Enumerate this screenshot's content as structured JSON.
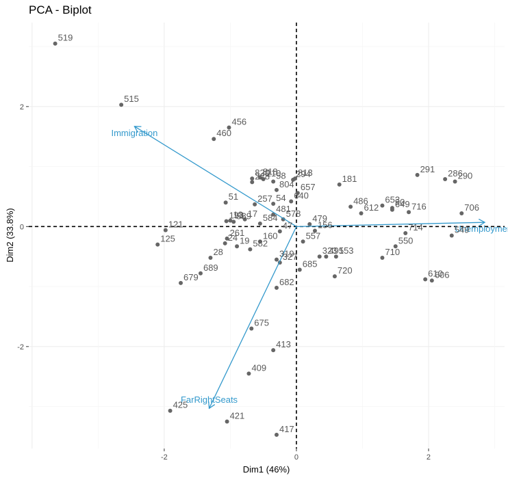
{
  "chart_data": {
    "type": "scatter",
    "title": "PCA - Biplot",
    "xlabel": "Dim1 (46%)",
    "ylabel": "Dim2 (33.8%)",
    "xlim": [
      -4.05,
      3.15
    ],
    "ylim": [
      -3.7,
      3.4
    ],
    "x_ticks": [
      -2,
      0,
      2
    ],
    "y_ticks": [
      -2,
      0,
      2
    ],
    "tick_labels_x": [
      "-2",
      "0",
      "2"
    ],
    "tick_labels_y": [
      "-2",
      "0",
      "2"
    ],
    "grid": true,
    "reference_lines": "dashed lines at x=0 and y=0",
    "point_color": "#666666",
    "arrow_color": "#3399cc",
    "points": [
      {
        "label": "519",
        "x": -3.65,
        "y": 3.05
      },
      {
        "label": "515",
        "x": -2.65,
        "y": 2.03
      },
      {
        "label": "456",
        "x": -1.02,
        "y": 1.65
      },
      {
        "label": "460",
        "x": -1.25,
        "y": 1.46
      },
      {
        "label": "818",
        "x": -0.55,
        "y": 0.82
      },
      {
        "label": "820",
        "x": -0.67,
        "y": 0.8
      },
      {
        "label": "210",
        "x": -0.5,
        "y": 0.79
      },
      {
        "label": "228",
        "x": -0.67,
        "y": 0.74
      },
      {
        "label": "58",
        "x": -0.35,
        "y": 0.75
      },
      {
        "label": "813",
        "x": -0.02,
        "y": 0.8
      },
      {
        "label": "294",
        "x": -0.05,
        "y": 0.78
      },
      {
        "label": "804",
        "x": -0.3,
        "y": 0.61
      },
      {
        "label": "657",
        "x": 0.02,
        "y": 0.56
      },
      {
        "label": "181",
        "x": 0.65,
        "y": 0.7
      },
      {
        "label": "291",
        "x": 1.83,
        "y": 0.86
      },
      {
        "label": "286",
        "x": 2.25,
        "y": 0.79
      },
      {
        "label": "290",
        "x": 2.4,
        "y": 0.75
      },
      {
        "label": "51",
        "x": -1.07,
        "y": 0.4
      },
      {
        "label": "257",
        "x": -0.63,
        "y": 0.37
      },
      {
        "label": "54",
        "x": -0.35,
        "y": 0.38
      },
      {
        "label": "640",
        "x": -0.08,
        "y": 0.42
      },
      {
        "label": "653",
        "x": 1.3,
        "y": 0.35
      },
      {
        "label": "90",
        "x": 1.45,
        "y": 0.31
      },
      {
        "label": "716",
        "x": 1.7,
        "y": 0.24
      },
      {
        "label": "706",
        "x": 2.5,
        "y": 0.22
      },
      {
        "label": "13",
        "x": -1.0,
        "y": 0.1
      },
      {
        "label": "17",
        "x": -0.78,
        "y": 0.12
      },
      {
        "label": "481",
        "x": -0.35,
        "y": 0.2
      },
      {
        "label": "578",
        "x": -0.2,
        "y": 0.12
      },
      {
        "label": "486",
        "x": 0.82,
        "y": 0.33
      },
      {
        "label": "649",
        "x": 1.45,
        "y": 0.28
      },
      {
        "label": "121",
        "x": -1.98,
        "y": -0.06
      },
      {
        "label": "193",
        "x": -1.06,
        "y": 0.09
      },
      {
        "label": "589",
        "x": -0.95,
        "y": 0.08
      },
      {
        "label": "584",
        "x": -0.55,
        "y": 0.05
      },
      {
        "label": "479",
        "x": 0.2,
        "y": 0.04
      },
      {
        "label": "612",
        "x": 0.98,
        "y": 0.22
      },
      {
        "label": "549",
        "x": 2.35,
        "y": -0.15
      },
      {
        "label": "47",
        "x": -0.25,
        "y": -0.08
      },
      {
        "label": "557",
        "x": 0.1,
        "y": -0.25
      },
      {
        "label": "156",
        "x": 0.28,
        "y": -0.07
      },
      {
        "label": "714",
        "x": 1.65,
        "y": -0.11
      },
      {
        "label": "125",
        "x": -2.1,
        "y": -0.3
      },
      {
        "label": "261",
        "x": -1.05,
        "y": -0.2
      },
      {
        "label": "160",
        "x": -0.55,
        "y": -0.25
      },
      {
        "label": "24",
        "x": -1.08,
        "y": -0.28
      },
      {
        "label": "19",
        "x": -0.9,
        "y": -0.33
      },
      {
        "label": "582",
        "x": -0.7,
        "y": -0.38
      },
      {
        "label": "319",
        "x": -0.3,
        "y": -0.55
      },
      {
        "label": "323",
        "x": 0.35,
        "y": -0.5
      },
      {
        "label": "553",
        "x": 0.6,
        "y": -0.5
      },
      {
        "label": "550",
        "x": 1.5,
        "y": -0.33
      },
      {
        "label": "710",
        "x": 1.3,
        "y": -0.52
      },
      {
        "label": "28",
        "x": -1.3,
        "y": -0.52
      },
      {
        "label": "327",
        "x": -0.25,
        "y": -0.6
      },
      {
        "label": "491",
        "x": 0.45,
        "y": -0.5
      },
      {
        "label": "689",
        "x": -1.45,
        "y": -0.78
      },
      {
        "label": "685",
        "x": 0.05,
        "y": -0.72
      },
      {
        "label": "720",
        "x": 0.58,
        "y": -0.83
      },
      {
        "label": "610",
        "x": 1.95,
        "y": -0.88
      },
      {
        "label": "606",
        "x": 2.05,
        "y": -0.9
      },
      {
        "label": "679",
        "x": -1.75,
        "y": -0.94
      },
      {
        "label": "682",
        "x": -0.3,
        "y": -1.02
      },
      {
        "label": "675",
        "x": -0.68,
        "y": -1.7
      },
      {
        "label": "413",
        "x": -0.35,
        "y": -2.06
      },
      {
        "label": "409",
        "x": -0.72,
        "y": -2.45
      },
      {
        "label": "425",
        "x": -1.91,
        "y": -3.07
      },
      {
        "label": "421",
        "x": -1.05,
        "y": -3.25
      },
      {
        "label": "417",
        "x": -0.3,
        "y": -3.47
      }
    ],
    "variables": [
      {
        "name": "Immigration",
        "x": -2.45,
        "y": 1.67
      },
      {
        "name": "Unemployment",
        "x": 2.85,
        "y": 0.07
      },
      {
        "name": "FarRightSeats",
        "x": -1.32,
        "y": -3.03
      }
    ]
  }
}
